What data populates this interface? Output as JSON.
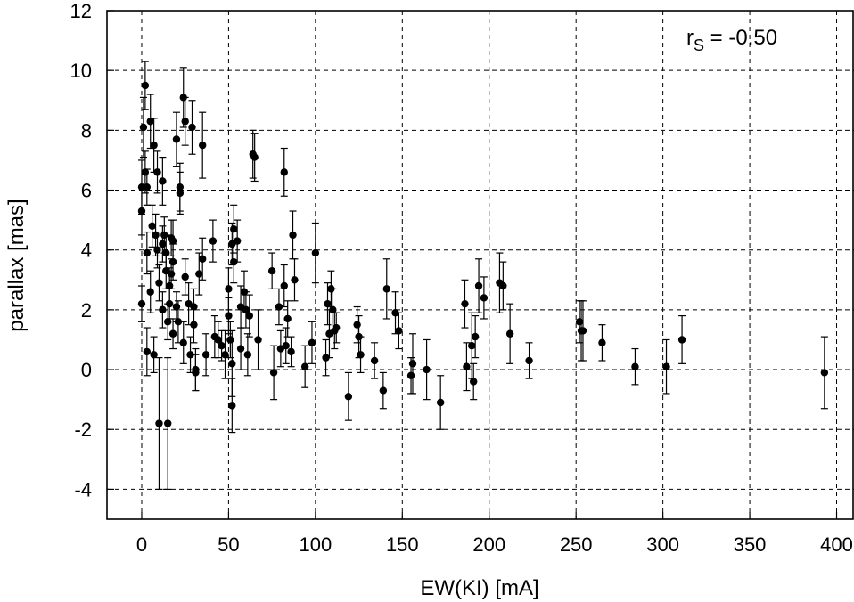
{
  "chart_data": {
    "type": "scatter",
    "xlabel": "EW(KI) [mA]",
    "ylabel": "parallax [mas]",
    "xlim": [
      -20,
      410
    ],
    "ylim": [
      -5,
      12
    ],
    "xticks": [
      0,
      50,
      100,
      150,
      200,
      250,
      300,
      350,
      400
    ],
    "yticks": [
      -4,
      -2,
      0,
      2,
      4,
      6,
      8,
      10,
      12
    ],
    "grid": true,
    "annotation": {
      "r": "r",
      "sub": "S",
      "value": " = -0.50"
    },
    "points": [
      {
        "x": 0,
        "y": 6.1,
        "err": 0.9
      },
      {
        "x": 0,
        "y": 5.3,
        "err": 0.8
      },
      {
        "x": 0,
        "y": 2.2,
        "err": 0.6
      },
      {
        "x": 1,
        "y": 8.1,
        "err": 1.0
      },
      {
        "x": 2,
        "y": 9.5,
        "err": 0.8
      },
      {
        "x": 2,
        "y": 6.6,
        "err": 0.7
      },
      {
        "x": 3,
        "y": 6.1,
        "err": 0.6
      },
      {
        "x": 3,
        "y": 3.9,
        "err": 0.7
      },
      {
        "x": 3,
        "y": 0.6,
        "err": 0.8
      },
      {
        "x": 5,
        "y": 8.3,
        "err": 0.9
      },
      {
        "x": 5,
        "y": 2.6,
        "err": 0.7
      },
      {
        "x": 6,
        "y": 4.8,
        "err": 0.7
      },
      {
        "x": 7,
        "y": 7.5,
        "err": 0.9
      },
      {
        "x": 7,
        "y": 0.5,
        "err": 0.6
      },
      {
        "x": 8,
        "y": 4.5,
        "err": 0.7
      },
      {
        "x": 9,
        "y": 6.6,
        "err": 0.7
      },
      {
        "x": 9,
        "y": 4.0,
        "err": 0.6
      },
      {
        "x": 10,
        "y": 2.9,
        "err": 0.6
      },
      {
        "x": 10,
        "y": -1.8,
        "err": 2.2
      },
      {
        "x": 12,
        "y": 6.3,
        "err": 0.8
      },
      {
        "x": 12,
        "y": 4.2,
        "err": 0.6
      },
      {
        "x": 12,
        "y": 2.0,
        "err": 0.6
      },
      {
        "x": 13,
        "y": 4.5,
        "err": 0.6
      },
      {
        "x": 14,
        "y": 3.9,
        "err": 0.6
      },
      {
        "x": 14,
        "y": 3.3,
        "err": 0.6
      },
      {
        "x": 15,
        "y": 1.6,
        "err": 0.6
      },
      {
        "x": 15,
        "y": -1.8,
        "err": 2.2
      },
      {
        "x": 16,
        "y": 2.8,
        "err": 0.6
      },
      {
        "x": 16,
        "y": 2.2,
        "err": 0.5
      },
      {
        "x": 17,
        "y": 4.4,
        "err": 0.6
      },
      {
        "x": 17,
        "y": 3.2,
        "err": 0.5
      },
      {
        "x": 18,
        "y": 4.3,
        "err": 0.7
      },
      {
        "x": 18,
        "y": 3.6,
        "err": 0.6
      },
      {
        "x": 18,
        "y": 1.2,
        "err": 0.5
      },
      {
        "x": 20,
        "y": 7.7,
        "err": 0.9
      },
      {
        "x": 20,
        "y": 2.1,
        "err": 0.5
      },
      {
        "x": 21,
        "y": 1.6,
        "err": 0.7
      },
      {
        "x": 22,
        "y": 6.1,
        "err": 0.8
      },
      {
        "x": 22,
        "y": 5.9,
        "err": 0.7
      },
      {
        "x": 24,
        "y": 9.1,
        "err": 1.0
      },
      {
        "x": 24,
        "y": 0.9,
        "err": 0.7
      },
      {
        "x": 25,
        "y": 8.3,
        "err": 0.8
      },
      {
        "x": 25,
        "y": 3.1,
        "err": 0.6
      },
      {
        "x": 27,
        "y": 2.2,
        "err": 0.7
      },
      {
        "x": 28,
        "y": 0.5,
        "err": 0.6
      },
      {
        "x": 29,
        "y": 8.1,
        "err": 0.9
      },
      {
        "x": 30,
        "y": 2.1,
        "err": 0.6
      },
      {
        "x": 30,
        "y": 1.5,
        "err": 0.6
      },
      {
        "x": 31,
        "y": 0.0,
        "err": 0.7
      },
      {
        "x": 31,
        "y": -0.1,
        "err": 0.6
      },
      {
        "x": 33,
        "y": 3.2,
        "err": 0.7
      },
      {
        "x": 35,
        "y": 7.5,
        "err": 1.1
      },
      {
        "x": 35,
        "y": 3.7,
        "err": 0.7
      },
      {
        "x": 37,
        "y": 0.5,
        "err": 0.7
      },
      {
        "x": 41,
        "y": 4.3,
        "err": 0.7
      },
      {
        "x": 42,
        "y": 1.1,
        "err": 0.7
      },
      {
        "x": 44,
        "y": 1.0,
        "err": 0.6
      },
      {
        "x": 46,
        "y": 0.8,
        "err": 0.5
      },
      {
        "x": 48,
        "y": 0.5,
        "err": 0.8
      },
      {
        "x": 50,
        "y": 2.7,
        "err": 0.7
      },
      {
        "x": 50,
        "y": 1.8,
        "err": 0.6
      },
      {
        "x": 51,
        "y": 1.0,
        "err": 0.6
      },
      {
        "x": 52,
        "y": 4.2,
        "err": 0.7
      },
      {
        "x": 52,
        "y": 0.2,
        "err": 1.1
      },
      {
        "x": 52,
        "y": -1.2,
        "err": 0.9
      },
      {
        "x": 53,
        "y": 4.7,
        "err": 0.8
      },
      {
        "x": 53,
        "y": 3.6,
        "err": 0.7
      },
      {
        "x": 55,
        "y": 4.3,
        "err": 0.7
      },
      {
        "x": 57,
        "y": 2.1,
        "err": 0.7
      },
      {
        "x": 57,
        "y": 0.7,
        "err": 0.7
      },
      {
        "x": 59,
        "y": 2.6,
        "err": 0.7
      },
      {
        "x": 60,
        "y": 2.0,
        "err": 0.6
      },
      {
        "x": 61,
        "y": 0.5,
        "err": 0.7
      },
      {
        "x": 62,
        "y": 1.8,
        "err": 0.7
      },
      {
        "x": 64,
        "y": 7.2,
        "err": 0.8
      },
      {
        "x": 65,
        "y": 7.1,
        "err": 0.8
      },
      {
        "x": 67,
        "y": 1.0,
        "err": 1.0
      },
      {
        "x": 75,
        "y": 3.3,
        "err": 0.6
      },
      {
        "x": 76,
        "y": -0.1,
        "err": 0.9
      },
      {
        "x": 79,
        "y": 2.1,
        "err": 0.6
      },
      {
        "x": 80,
        "y": 0.7,
        "err": 0.6
      },
      {
        "x": 82,
        "y": 6.6,
        "err": 0.8
      },
      {
        "x": 82,
        "y": 2.8,
        "err": 0.7
      },
      {
        "x": 83,
        "y": 0.8,
        "err": 0.6
      },
      {
        "x": 84,
        "y": 1.7,
        "err": 0.6
      },
      {
        "x": 86,
        "y": 0.6,
        "err": 0.5
      },
      {
        "x": 87,
        "y": 4.5,
        "err": 0.8
      },
      {
        "x": 88,
        "y": 3.0,
        "err": 0.7
      },
      {
        "x": 94,
        "y": 0.1,
        "err": 0.7
      },
      {
        "x": 98,
        "y": 0.9,
        "err": 0.7
      },
      {
        "x": 100,
        "y": 3.9,
        "err": 1.0
      },
      {
        "x": 106,
        "y": 0.4,
        "err": 0.6
      },
      {
        "x": 107,
        "y": 2.2,
        "err": 0.7
      },
      {
        "x": 108,
        "y": 1.2,
        "err": 0.8
      },
      {
        "x": 109,
        "y": 2.7,
        "err": 0.6
      },
      {
        "x": 110,
        "y": 2.0,
        "err": 0.7
      },
      {
        "x": 111,
        "y": 1.3,
        "err": 0.6
      },
      {
        "x": 112,
        "y": 1.4,
        "err": 0.5
      },
      {
        "x": 119,
        "y": -0.9,
        "err": 0.8
      },
      {
        "x": 124,
        "y": 1.5,
        "err": 0.6
      },
      {
        "x": 125,
        "y": 1.1,
        "err": 0.7
      },
      {
        "x": 126,
        "y": 0.5,
        "err": 0.6
      },
      {
        "x": 134,
        "y": 0.3,
        "err": 0.6
      },
      {
        "x": 139,
        "y": -0.7,
        "err": 0.6
      },
      {
        "x": 141,
        "y": 2.7,
        "err": 1.0
      },
      {
        "x": 146,
        "y": 1.9,
        "err": 0.7
      },
      {
        "x": 148,
        "y": 1.3,
        "err": 0.6
      },
      {
        "x": 155,
        "y": -0.2,
        "err": 0.6
      },
      {
        "x": 156,
        "y": 0.2,
        "err": 1.0
      },
      {
        "x": 164,
        "y": 0.0,
        "err": 1.0
      },
      {
        "x": 172,
        "y": -1.1,
        "err": 0.9
      },
      {
        "x": 186,
        "y": 2.2,
        "err": 0.8
      },
      {
        "x": 187,
        "y": 0.1,
        "err": 0.8
      },
      {
        "x": 190,
        "y": 0.8,
        "err": 1.1
      },
      {
        "x": 191,
        "y": -0.4,
        "err": 0.6
      },
      {
        "x": 192,
        "y": 1.1,
        "err": 0.7
      },
      {
        "x": 194,
        "y": 2.8,
        "err": 0.9
      },
      {
        "x": 197,
        "y": 2.4,
        "err": 0.7
      },
      {
        "x": 206,
        "y": 2.9,
        "err": 1.0
      },
      {
        "x": 208,
        "y": 2.8,
        "err": 0.8
      },
      {
        "x": 212,
        "y": 1.2,
        "err": 1.0
      },
      {
        "x": 223,
        "y": 0.3,
        "err": 0.6
      },
      {
        "x": 252,
        "y": 1.6,
        "err": 0.7
      },
      {
        "x": 253,
        "y": 1.3,
        "err": 1.0
      },
      {
        "x": 254,
        "y": 1.3,
        "err": 1.0
      },
      {
        "x": 265,
        "y": 0.9,
        "err": 0.6
      },
      {
        "x": 284,
        "y": 0.1,
        "err": 0.6
      },
      {
        "x": 302,
        "y": 0.1,
        "err": 0.9
      },
      {
        "x": 311,
        "y": 1.0,
        "err": 0.8
      },
      {
        "x": 393,
        "y": -0.1,
        "err": 1.2
      }
    ]
  }
}
